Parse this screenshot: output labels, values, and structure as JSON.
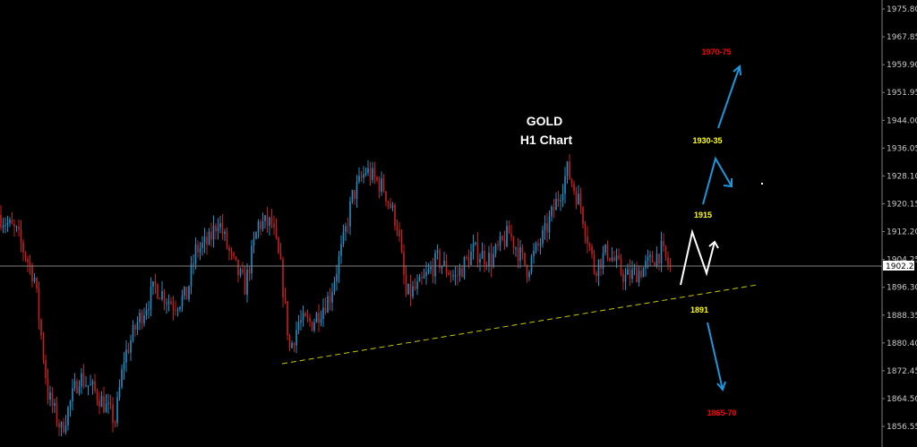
{
  "chart_data": {
    "type": "candlestick",
    "title": "GOLD",
    "subtitle": "H1 Chart",
    "ylim": [
      1852.5,
      1979.0
    ],
    "y_ticks": [
      "1975.80",
      "1967.85",
      "1959.90",
      "1951.95",
      "1944.00",
      "1936.05",
      "1928.10",
      "1920.15",
      "1912.20",
      "1904.25",
      "1896.30",
      "1888.35",
      "1880.40",
      "1872.45",
      "1864.50",
      "1856.55"
    ],
    "current_price": "1902.27",
    "grid": false,
    "bar_count": 300,
    "price_path": [
      [
        0,
        1917.0
      ],
      [
        8,
        1911.8
      ],
      [
        16,
        1899.0
      ],
      [
        22,
        1865.8
      ],
      [
        28,
        1855.5
      ],
      [
        36,
        1870.9
      ],
      [
        44,
        1865.8
      ],
      [
        52,
        1858.1
      ],
      [
        56,
        1876.0
      ],
      [
        62,
        1886.2
      ],
      [
        70,
        1896.5
      ],
      [
        78,
        1891.4
      ],
      [
        84,
        1893.9
      ],
      [
        88,
        1906.7
      ],
      [
        94,
        1909.3
      ],
      [
        98,
        1915.7
      ],
      [
        104,
        1904.2
      ],
      [
        110,
        1896.5
      ],
      [
        116,
        1914.4
      ],
      [
        122,
        1914.4
      ],
      [
        126,
        1901.6
      ],
      [
        130,
        1878.6
      ],
      [
        134,
        1886.2
      ],
      [
        140,
        1886.2
      ],
      [
        148,
        1893.9
      ],
      [
        154,
        1909.3
      ],
      [
        158,
        1922.1
      ],
      [
        164,
        1929.7
      ],
      [
        172,
        1924.6
      ],
      [
        178,
        1914.4
      ],
      [
        182,
        1893.9
      ],
      [
        188,
        1896.5
      ],
      [
        196,
        1904.2
      ],
      [
        204,
        1899.0
      ],
      [
        212,
        1906.7
      ],
      [
        220,
        1904.2
      ],
      [
        228,
        1911.8
      ],
      [
        236,
        1901.6
      ],
      [
        244,
        1911.8
      ],
      [
        250,
        1922.1
      ],
      [
        254,
        1929.7
      ],
      [
        260,
        1919.5
      ],
      [
        266,
        1901.6
      ],
      [
        272,
        1906.7
      ],
      [
        280,
        1899.0
      ],
      [
        288,
        1901.6
      ],
      [
        296,
        1906.7
      ],
      [
        300,
        1901.6
      ]
    ],
    "colors": {
      "up": "#1e90c8",
      "down": "#c81e1e",
      "trendline": "#c8c800",
      "arrow": "#1e96dc",
      "projection": "#ffffff",
      "current_price_line": "#808080"
    },
    "trendline": {
      "style": "dashed",
      "from": 1874.5,
      "to": 1897.0
    },
    "annotations": {
      "target_high": "1970-75",
      "resistance_2": "1930-35",
      "resistance_1": "1915",
      "support": "1891",
      "target_low": "1865-70"
    },
    "annotation_colors": {
      "target_high": "#ff0000",
      "resistance_2": "#ffff00",
      "resistance_1": "#ffff00",
      "support": "#ffff00",
      "target_low": "#ff0000"
    }
  }
}
